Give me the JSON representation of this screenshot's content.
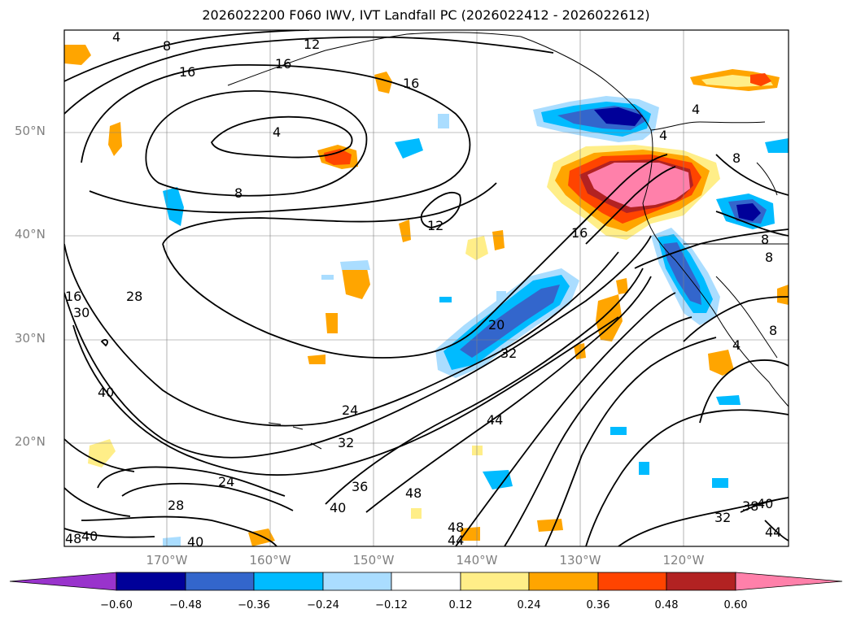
{
  "title": "2026022200 F060 IWV, IVT Landfall PC (2026022412 - 2026022612)",
  "lat_labels": [
    "50°N",
    "40°N",
    "30°N",
    "20°N"
  ],
  "lon_labels": [
    "170°W",
    "160°W",
    "150°W",
    "140°W",
    "130°W",
    "120°W"
  ],
  "colorbar": {
    "labels": [
      "−0.60",
      "−0.48",
      "−0.36",
      "−0.24",
      "−0.12",
      "0.12",
      "0.24",
      "0.36",
      "0.48",
      "0.60"
    ],
    "colors": [
      "#9933cc",
      "#000099",
      "#3366cc",
      "#00bbff",
      "#aaddff",
      "#ffffff",
      "#ffee88",
      "#ffa500",
      "#ff4400",
      "#b22222",
      "#ff80aa",
      "#ff80aa"
    ]
  },
  "contour_labels": [
    "4",
    "8",
    "16",
    "16",
    "16",
    "12",
    "4",
    "8",
    "12",
    "16",
    "20",
    "32",
    "4",
    "4",
    "8",
    "8",
    "8",
    "4",
    "28",
    "16",
    "30",
    "40",
    "24",
    "32",
    "44",
    "24",
    "28",
    "40",
    "36",
    "48",
    "40",
    "48",
    "44",
    "32",
    "38",
    "40",
    "44",
    "8",
    "40",
    "48"
  ]
}
